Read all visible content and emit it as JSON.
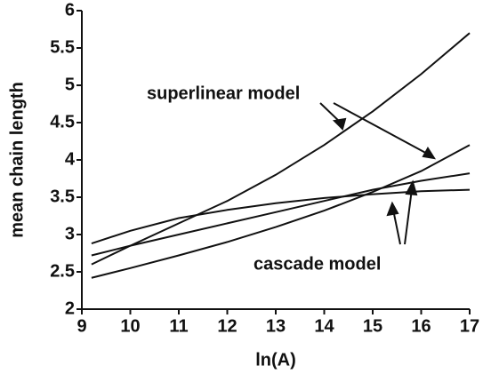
{
  "chart_data": {
    "type": "line",
    "xlabel": "ln(A)",
    "ylabel": "mean chain length",
    "x": [
      9.2,
      10,
      11,
      12,
      13,
      14,
      15,
      16,
      17
    ],
    "series": [
      {
        "name": "superlinear model",
        "color": "#111111",
        "values": [
          2.6,
          2.85,
          3.15,
          3.45,
          3.8,
          4.2,
          4.65,
          5.15,
          5.7
        ]
      },
      {
        "name": "superlinear model",
        "color": "#111111",
        "values": [
          2.42,
          2.55,
          2.72,
          2.9,
          3.1,
          3.32,
          3.57,
          3.85,
          4.2
        ]
      },
      {
        "name": "cascade model",
        "color": "#111111",
        "values": [
          2.88,
          3.05,
          3.22,
          3.33,
          3.42,
          3.49,
          3.54,
          3.58,
          3.6
        ]
      },
      {
        "name": "cascade model",
        "color": "#111111",
        "values": [
          2.72,
          2.85,
          3.0,
          3.15,
          3.3,
          3.45,
          3.6,
          3.72,
          3.82
        ]
      }
    ],
    "annotations": [
      "superlinear model",
      "cascade model"
    ],
    "xlim": [
      9,
      17
    ],
    "xticks": [
      9,
      10,
      11,
      12,
      13,
      14,
      15,
      16,
      17
    ],
    "ylim": [
      2,
      6
    ],
    "yticks": [
      2,
      2.5,
      3,
      3.5,
      4,
      4.5,
      5,
      5.5,
      6
    ],
    "grid": false
  }
}
